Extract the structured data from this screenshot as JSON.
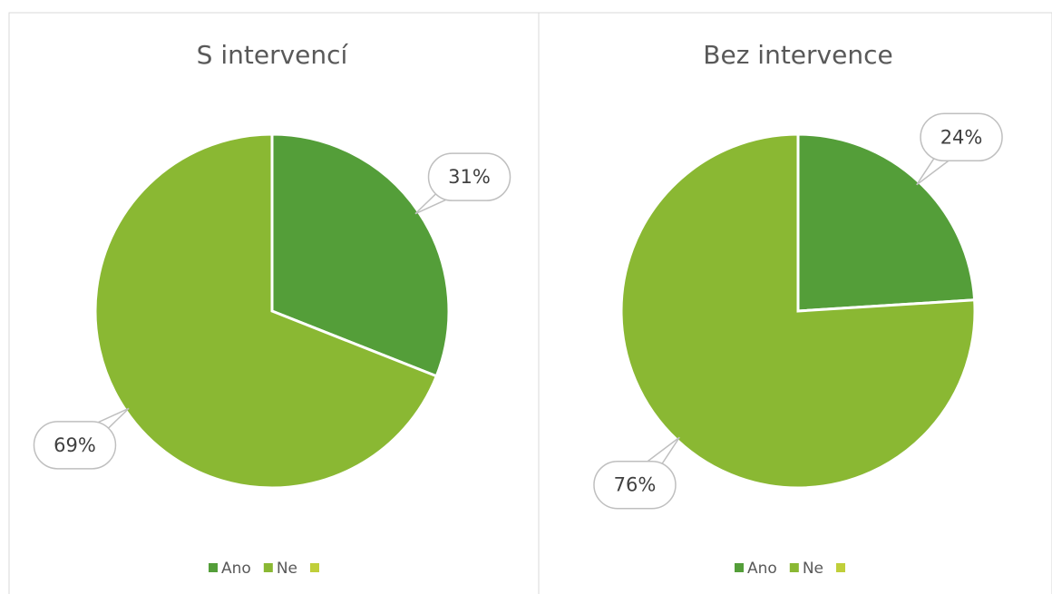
{
  "chart_data": [
    {
      "type": "pie",
      "title": "S intervencí",
      "categories": [
        "Ano",
        "Ne",
        null
      ],
      "values": [
        31,
        69,
        0
      ],
      "value_labels": [
        "31%",
        "69%",
        null
      ],
      "colors": [
        "#549e39",
        "#8ab833",
        "#c0cf3a"
      ]
    },
    {
      "type": "pie",
      "title": "Bez intervence",
      "categories": [
        "Ano",
        "Ne",
        null
      ],
      "values": [
        24,
        76,
        0
      ],
      "value_labels": [
        "24%",
        "76%",
        null
      ],
      "colors": [
        "#549e39",
        "#8ab833",
        "#c0cf3a"
      ]
    }
  ]
}
